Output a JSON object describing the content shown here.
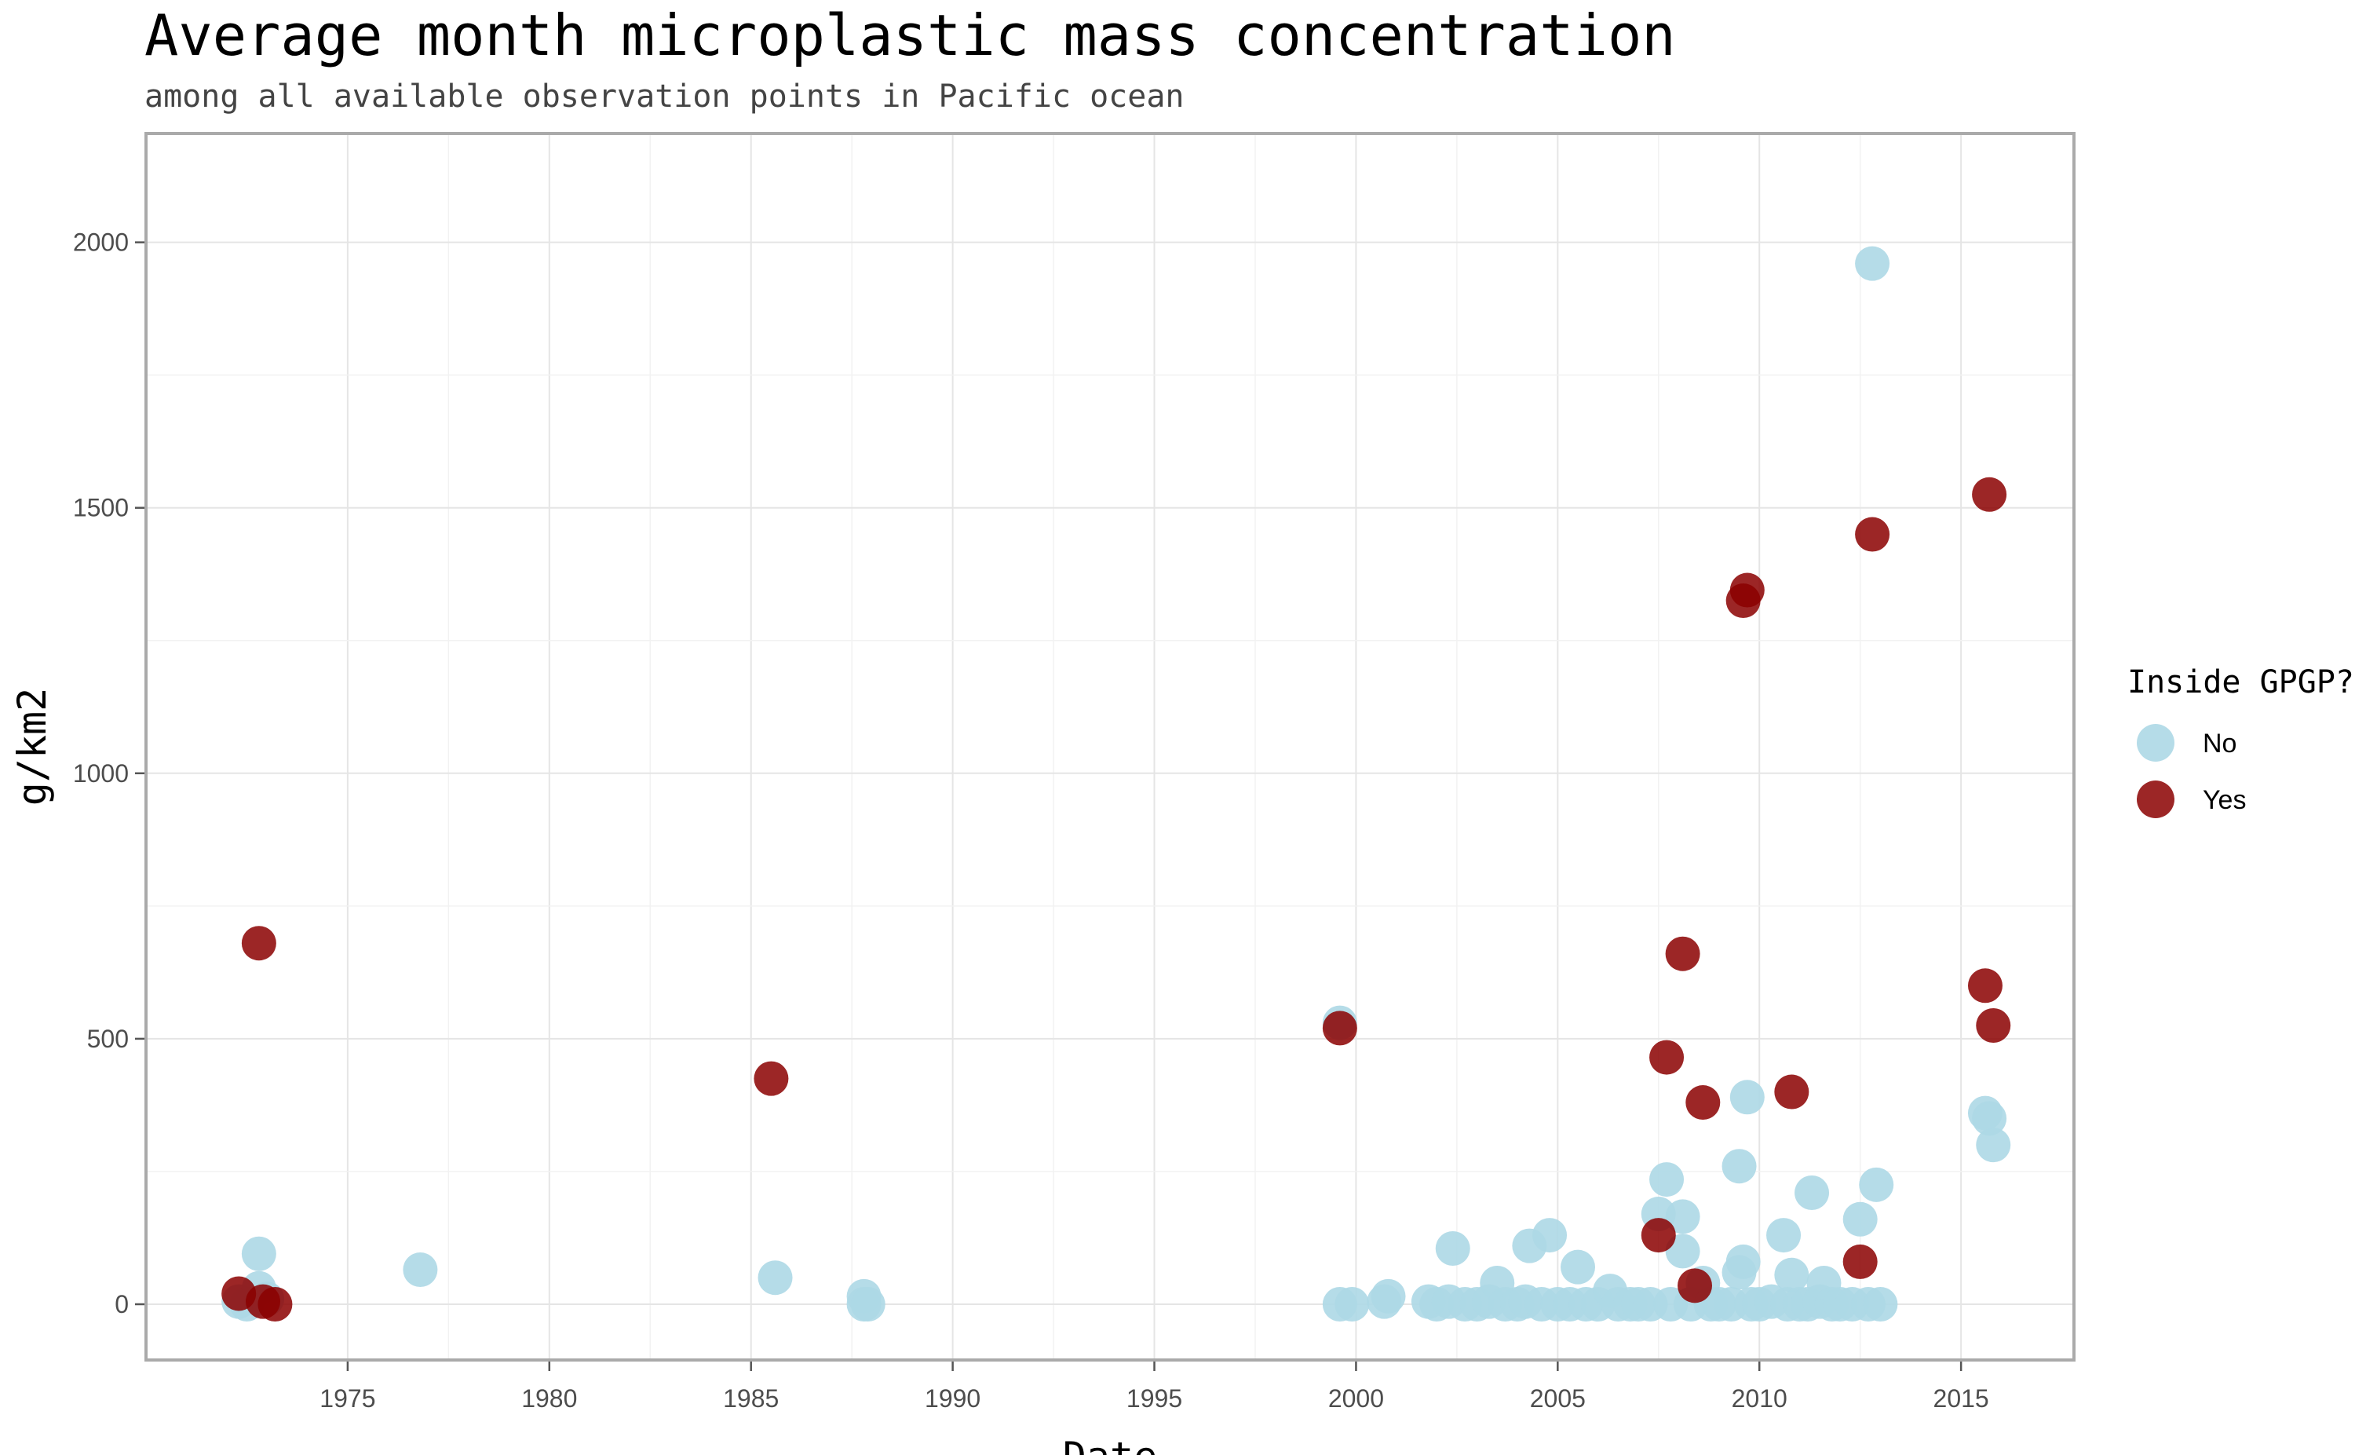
{
  "chart_data": {
    "type": "scatter",
    "title": "Average month microplastic mass concentration",
    "subtitle": "among all available observation points in Pacific ocean",
    "xlabel": "Date",
    "ylabel": "g/km2",
    "x_axis": "date (year)",
    "xlim": [
      1970.0,
      2017.8
    ],
    "ylim": [
      -105,
      2205
    ],
    "x_ticks": [
      1975,
      1980,
      1985,
      1990,
      1995,
      2000,
      2005,
      2010,
      2015
    ],
    "y_ticks": [
      0,
      500,
      1000,
      1500,
      2000
    ],
    "grid": true,
    "legend": {
      "title": "Inside GPGP?",
      "position": "right"
    },
    "series": [
      {
        "name": "No",
        "color": "#add8e6",
        "points": [
          [
            1972.3,
            5
          ],
          [
            1972.5,
            0
          ],
          [
            1972.8,
            30
          ],
          [
            1972.8,
            95
          ],
          [
            1973.0,
            10
          ],
          [
            1976.8,
            65
          ],
          [
            1985.6,
            50
          ],
          [
            1987.8,
            15
          ],
          [
            1987.8,
            0
          ],
          [
            1987.9,
            0
          ],
          [
            1999.6,
            530
          ],
          [
            1999.6,
            0
          ],
          [
            1999.9,
            0
          ],
          [
            2000.7,
            5
          ],
          [
            2000.8,
            15
          ],
          [
            2001.8,
            5
          ],
          [
            2002.0,
            0
          ],
          [
            2002.3,
            5
          ],
          [
            2002.4,
            105
          ],
          [
            2002.7,
            0
          ],
          [
            2003.0,
            0
          ],
          [
            2003.3,
            5
          ],
          [
            2003.5,
            40
          ],
          [
            2003.7,
            0
          ],
          [
            2004.0,
            0
          ],
          [
            2004.2,
            5
          ],
          [
            2004.3,
            110
          ],
          [
            2004.6,
            0
          ],
          [
            2004.8,
            130
          ],
          [
            2005.0,
            0
          ],
          [
            2005.3,
            0
          ],
          [
            2005.5,
            70
          ],
          [
            2005.7,
            0
          ],
          [
            2006.0,
            0
          ],
          [
            2006.3,
            25
          ],
          [
            2006.5,
            0
          ],
          [
            2006.8,
            0
          ],
          [
            2007.0,
            0
          ],
          [
            2007.3,
            0
          ],
          [
            2007.5,
            170
          ],
          [
            2007.7,
            235
          ],
          [
            2007.8,
            0
          ],
          [
            2008.1,
            165
          ],
          [
            2008.1,
            100
          ],
          [
            2008.3,
            0
          ],
          [
            2008.6,
            40
          ],
          [
            2008.8,
            0
          ],
          [
            2009.0,
            0
          ],
          [
            2009.3,
            0
          ],
          [
            2009.5,
            260
          ],
          [
            2009.5,
            60
          ],
          [
            2009.6,
            80
          ],
          [
            2009.7,
            390
          ],
          [
            2009.8,
            0
          ],
          [
            2010.0,
            0
          ],
          [
            2010.3,
            5
          ],
          [
            2010.6,
            130
          ],
          [
            2010.7,
            0
          ],
          [
            2010.8,
            55
          ],
          [
            2011.0,
            0
          ],
          [
            2011.2,
            0
          ],
          [
            2011.3,
            210
          ],
          [
            2011.5,
            5
          ],
          [
            2011.6,
            40
          ],
          [
            2011.8,
            0
          ],
          [
            2012.0,
            0
          ],
          [
            2012.3,
            0
          ],
          [
            2012.5,
            160
          ],
          [
            2012.7,
            0
          ],
          [
            2012.8,
            1960
          ],
          [
            2012.9,
            225
          ],
          [
            2013.0,
            0
          ],
          [
            2015.6,
            360
          ],
          [
            2015.7,
            350
          ],
          [
            2015.8,
            300
          ]
        ]
      },
      {
        "name": "Yes",
        "color": "#8b0000",
        "points": [
          [
            1972.3,
            20
          ],
          [
            1972.8,
            680
          ],
          [
            1972.9,
            5
          ],
          [
            1973.2,
            0
          ],
          [
            1985.5,
            425
          ],
          [
            1999.6,
            520
          ],
          [
            2007.5,
            130
          ],
          [
            2007.7,
            465
          ],
          [
            2008.1,
            660
          ],
          [
            2008.4,
            35
          ],
          [
            2008.6,
            380
          ],
          [
            2009.6,
            1325
          ],
          [
            2009.7,
            1345
          ],
          [
            2010.8,
            400
          ],
          [
            2012.5,
            80
          ],
          [
            2012.8,
            1450
          ],
          [
            2015.6,
            600
          ],
          [
            2015.7,
            1525
          ],
          [
            2015.8,
            525
          ]
        ]
      }
    ]
  }
}
